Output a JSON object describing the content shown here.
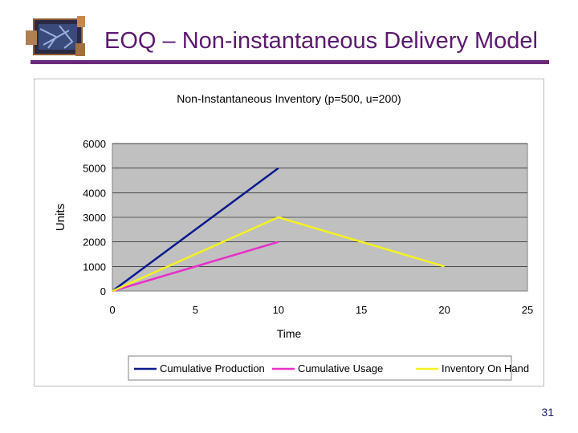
{
  "slide": {
    "title": "EOQ – Non-instantaneous Delivery Model",
    "page_number": "31"
  },
  "colors": {
    "title": "#5a1a6e",
    "rule": "#6b2a7a",
    "plot_bg": "#c0c0c0"
  },
  "chart_data": {
    "type": "line",
    "title": "Non-Instantaneous Inventory (p=500, u=200)",
    "xlabel": "Time",
    "ylabel": "Units",
    "xlim": [
      0,
      25
    ],
    "ylim": [
      0,
      6000
    ],
    "xticks": [
      0,
      5,
      10,
      15,
      20,
      25
    ],
    "yticks": [
      0,
      1000,
      2000,
      3000,
      4000,
      5000,
      6000
    ],
    "grid": true,
    "legend": "bottom",
    "series": [
      {
        "name": "Cumulative Production",
        "color": "#0a1a8c",
        "x": [
          0,
          10
        ],
        "y": [
          0,
          5000
        ]
      },
      {
        "name": "Cumulative Usage",
        "color": "#e630c8",
        "x": [
          0,
          10
        ],
        "y": [
          0,
          2000
        ]
      },
      {
        "name": "Inventory On Hand",
        "color": "#f2f222",
        "x": [
          0,
          10,
          20
        ],
        "y": [
          0,
          3000,
          1000
        ]
      }
    ]
  }
}
